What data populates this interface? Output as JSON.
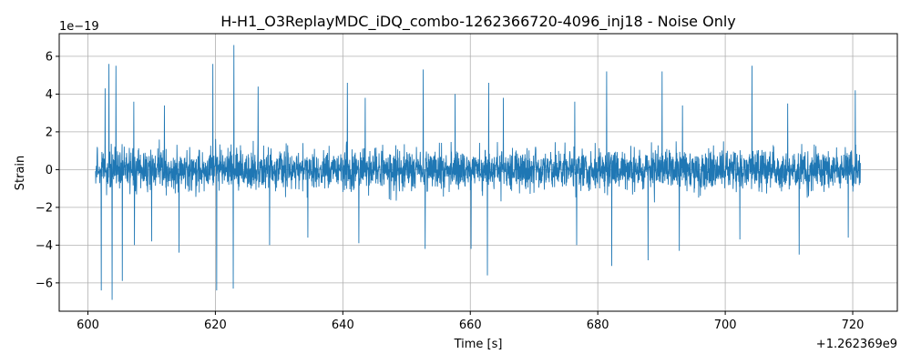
{
  "chart_data": {
    "type": "line",
    "title": "H-H1_O3ReplayMDC_iDQ_combo-1262366720-4096_inj18 - Noise Only",
    "xlabel": "Time [s]",
    "ylabel": "Strain",
    "x_offset_label": "+1.262369e9",
    "y_scale_label": "1e−19",
    "xlim": [
      595.5,
      727.0
    ],
    "ylim": [
      -7.5,
      7.2
    ],
    "x_ticks": [
      600,
      620,
      640,
      660,
      680,
      700,
      720
    ],
    "x_tick_labels": [
      "600",
      "620",
      "640",
      "660",
      "680",
      "700",
      "720"
    ],
    "y_ticks": [
      -6,
      -4,
      -2,
      0,
      2,
      4,
      6
    ],
    "y_tick_labels": [
      "−6",
      "−4",
      "−2",
      "0",
      "2",
      "4",
      "6"
    ],
    "grid": true,
    "color": "#1f77b4",
    "series": [
      {
        "x_start": 601.2,
        "x_end": 721.2,
        "typical_amplitude": 2.0,
        "peaks": [
          {
            "x": 602.7,
            "y": 4.3
          },
          {
            "x": 603.3,
            "y": 5.6
          },
          {
            "x": 604.4,
            "y": 5.5
          },
          {
            "x": 607.2,
            "y": 3.6
          },
          {
            "x": 612.0,
            "y": 3.4
          },
          {
            "x": 619.6,
            "y": 5.6
          },
          {
            "x": 622.9,
            "y": 6.6
          },
          {
            "x": 626.7,
            "y": 4.4
          },
          {
            "x": 640.7,
            "y": 4.6
          },
          {
            "x": 643.5,
            "y": 3.8
          },
          {
            "x": 652.6,
            "y": 5.3
          },
          {
            "x": 657.6,
            "y": 4.0
          },
          {
            "x": 662.9,
            "y": 4.6
          },
          {
            "x": 665.2,
            "y": 3.8
          },
          {
            "x": 676.4,
            "y": 3.6
          },
          {
            "x": 681.4,
            "y": 5.2
          },
          {
            "x": 690.1,
            "y": 5.2
          },
          {
            "x": 693.3,
            "y": 3.4
          },
          {
            "x": 704.2,
            "y": 5.5
          },
          {
            "x": 709.8,
            "y": 3.5
          },
          {
            "x": 720.4,
            "y": 4.2
          }
        ],
        "troughs": [
          {
            "x": 602.1,
            "y": -6.4
          },
          {
            "x": 603.8,
            "y": -6.9
          },
          {
            "x": 605.4,
            "y": -5.9
          },
          {
            "x": 607.3,
            "y": -4.0
          },
          {
            "x": 610.0,
            "y": -3.8
          },
          {
            "x": 614.3,
            "y": -4.4
          },
          {
            "x": 620.2,
            "y": -6.4
          },
          {
            "x": 622.8,
            "y": -6.3
          },
          {
            "x": 628.5,
            "y": -4.0
          },
          {
            "x": 634.5,
            "y": -3.6
          },
          {
            "x": 642.5,
            "y": -3.9
          },
          {
            "x": 652.9,
            "y": -4.2
          },
          {
            "x": 660.1,
            "y": -4.2
          },
          {
            "x": 662.7,
            "y": -5.6
          },
          {
            "x": 676.7,
            "y": -4.0
          },
          {
            "x": 682.2,
            "y": -5.1
          },
          {
            "x": 687.9,
            "y": -4.8
          },
          {
            "x": 692.8,
            "y": -4.3
          },
          {
            "x": 702.3,
            "y": -3.7
          },
          {
            "x": 711.6,
            "y": -4.5
          },
          {
            "x": 719.3,
            "y": -3.6
          }
        ]
      }
    ]
  }
}
